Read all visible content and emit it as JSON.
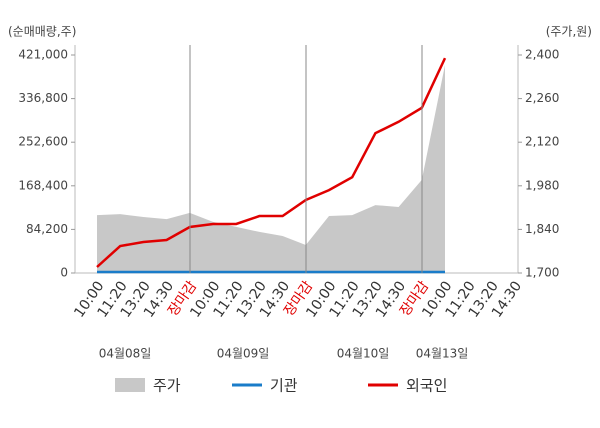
{
  "chart_data": {
    "type": "line",
    "y_axis_label": "(순매매량,주)",
    "y2_axis_label": "(주가,원)",
    "categories": [
      "10:00",
      "11:20",
      "13:20",
      "14:30",
      "장마감",
      "10:00",
      "11:20",
      "13:20",
      "14:30",
      "장마감",
      "10:00",
      "11:20",
      "13:20",
      "14:30",
      "장마감",
      "10:00",
      "11:20",
      "13:20",
      "14:30"
    ],
    "x_tick_colors": [
      "#333",
      "#333",
      "#333",
      "#333",
      "#e00000",
      "#333",
      "#333",
      "#333",
      "#333",
      "#e00000",
      "#333",
      "#333",
      "#333",
      "#333",
      "#e00000",
      "#333",
      "#333",
      "#333",
      "#333"
    ],
    "dates": [
      "04월08일",
      "04월09일",
      "04월10일",
      "04월13일"
    ],
    "series": [
      {
        "name": "주가",
        "type": "area",
        "axis": "y2",
        "color": "#c8c8c8",
        "values": [
          1886,
          1889,
          1880,
          1873,
          1893,
          1864,
          1848,
          1832,
          1819,
          1790,
          1883,
          1886,
          1918,
          1912,
          1999,
          2368,
          null,
          null,
          null
        ]
      },
      {
        "name": "기관",
        "type": "line",
        "color": "#1a7cc9",
        "values": [
          2000,
          2000,
          2000,
          2000,
          2000,
          2000,
          2000,
          2000,
          2000,
          2000,
          2000,
          2000,
          2000,
          2000,
          2000,
          2000,
          null,
          null,
          null
        ]
      },
      {
        "name": "외국인",
        "type": "line",
        "color": "#e00000",
        "values": [
          11600,
          52100,
          59800,
          63700,
          88800,
          94700,
          94700,
          110000,
          110000,
          141000,
          160000,
          185000,
          270000,
          292000,
          319000,
          415000,
          null,
          null,
          null
        ]
      }
    ],
    "ylim": [
      0,
      421000
    ],
    "yticks": [
      0,
      {
        "value": 84200,
        "label": "84,200"
      },
      {
        "value": 168400,
        "label": "168,400"
      },
      {
        "value": 252600,
        "label": "252,600"
      },
      {
        "value": 336800,
        "label": "336,800"
      },
      {
        "value": 421000,
        "label": "421,000"
      }
    ],
    "y2lim": [
      1700,
      2400
    ],
    "y2ticks": [
      {
        "value": 1700,
        "label": "1,700"
      },
      {
        "value": 1840,
        "label": "1,840"
      },
      {
        "value": 1980,
        "label": "1,980"
      },
      {
        "value": 2120,
        "label": "2,120"
      },
      {
        "value": 2260,
        "label": "2,260"
      },
      {
        "value": 2400,
        "label": "2,400"
      }
    ],
    "legend": "bottom"
  }
}
